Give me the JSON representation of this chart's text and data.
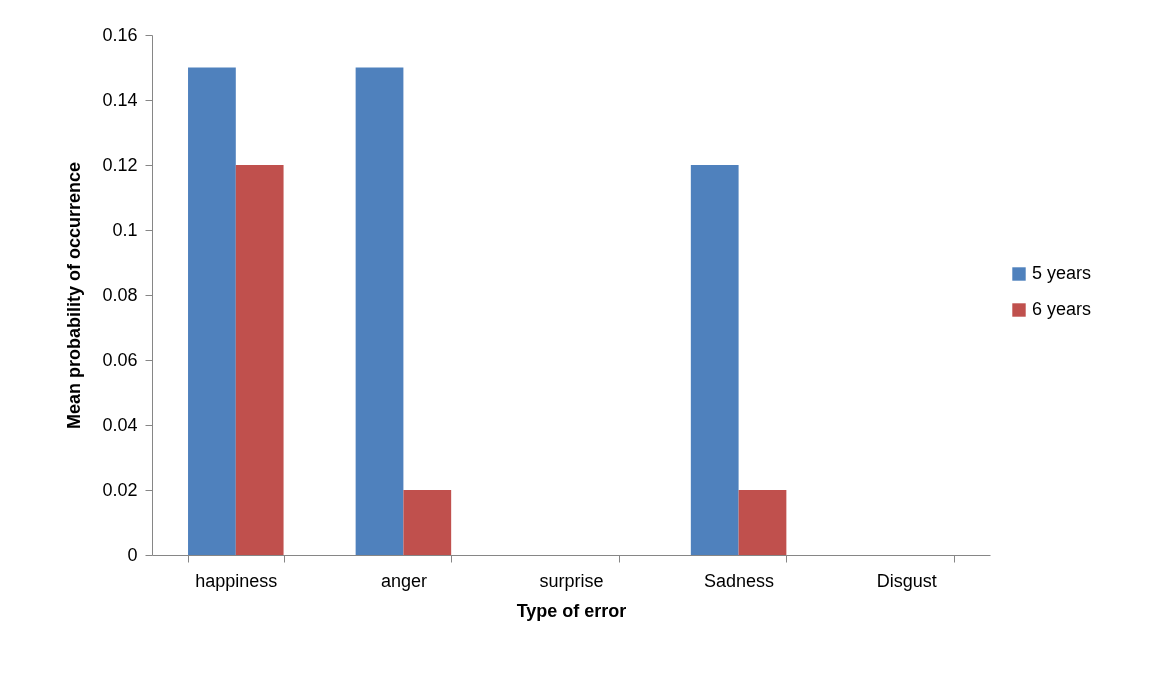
{
  "chart_data": {
    "type": "bar",
    "xlabel": "Type of error",
    "ylabel": "Mean probability of occurrence",
    "categories": [
      "happiness",
      "anger",
      "surprise",
      "Sadness",
      "Disgust"
    ],
    "series": [
      {
        "name": "5 years",
        "color": "#4f81bd",
        "values": [
          0.15,
          0.15,
          0,
          0.12,
          0
        ]
      },
      {
        "name": "6 years",
        "color": "#c0504d",
        "values": [
          0.12,
          0.02,
          0,
          0.02,
          0
        ]
      }
    ],
    "ylim": [
      0,
      0.16
    ],
    "yticks": [
      0,
      0.02,
      0.04,
      0.06,
      0.08,
      0.1,
      0.12,
      0.14,
      0.16
    ],
    "grid": false,
    "legend": "right"
  }
}
